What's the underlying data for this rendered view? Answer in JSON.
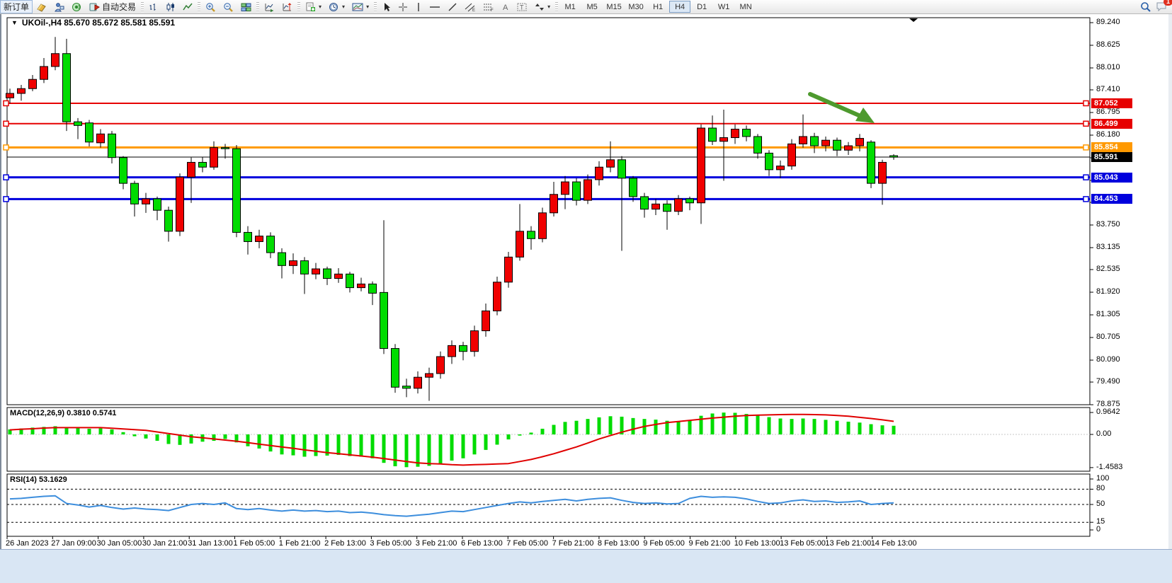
{
  "toolbar": {
    "new_order": "新订单",
    "autotrading": "自动交易",
    "badge_count": "1",
    "icons": [
      "metaeditor-icon",
      "accounts-icon",
      "signals-icon",
      "autotrading-icon",
      "bar-chart-icon",
      "candlestick-icon",
      "line-chart-icon",
      "zoom-in-icon",
      "zoom-out-icon",
      "tile-windows-icon",
      "auto-scroll-icon",
      "chart-shift-icon",
      "new-chart-icon",
      "period-clock-icon",
      "templates-icon",
      "cursor-icon",
      "crosshair-icon",
      "vertical-line-icon",
      "horizontal-line-icon",
      "trendline-icon",
      "channel-icon",
      "fibonacci-icon",
      "text-icon",
      "text-label-icon",
      "arrows-icon",
      "search-icon",
      "chat-icon"
    ],
    "timeframes": [
      {
        "label": "M1",
        "active": false
      },
      {
        "label": "M5",
        "active": false
      },
      {
        "label": "M15",
        "active": false
      },
      {
        "label": "M30",
        "active": false
      },
      {
        "label": "H1",
        "active": false
      },
      {
        "label": "H4",
        "active": true
      },
      {
        "label": "D1",
        "active": false
      },
      {
        "label": "W1",
        "active": false
      },
      {
        "label": "MN",
        "active": false
      }
    ]
  },
  "chart": {
    "dropdown_glyph": "▼",
    "title": "UKOil-,H4  85.670 85.672 85.581 85.591"
  },
  "chart_data": {
    "type": "candlestick",
    "symbol": "UKOil-",
    "timeframe": "H4",
    "ohlc_display": [
      "85.670",
      "85.672",
      "85.581",
      "85.591"
    ],
    "up_color": "#f00000",
    "down_color": "#00dc00",
    "price_axis_range": [
      78.875,
      89.24
    ],
    "price_axis_ticks": [
      "89.240",
      "88.625",
      "88.010",
      "87.410",
      "86.795",
      "86.180",
      "85.565",
      "84.965",
      "84.365",
      "83.750",
      "83.135",
      "82.535",
      "81.920",
      "81.305",
      "80.705",
      "80.090",
      "79.490",
      "78.875"
    ],
    "hlines": [
      {
        "label": "87.052",
        "value": 87.052,
        "color": "#e60000",
        "thickness": 2
      },
      {
        "label": "86.499",
        "value": 86.499,
        "color": "#e60000",
        "thickness": 2
      },
      {
        "label": "85.854",
        "value": 85.854,
        "color": "#ff9900",
        "thickness": 3
      },
      {
        "label": "85.043",
        "value": 85.043,
        "color": "#0000dd",
        "thickness": 3
      },
      {
        "label": "84.453",
        "value": 84.453,
        "color": "#0000dd",
        "thickness": 3
      }
    ],
    "current_price": {
      "label": "85.591",
      "value": 85.591,
      "color": "#000000"
    },
    "annotation_arrow_color": "#4e9a2e",
    "candles": [
      [
        87.2,
        87.45,
        87.05,
        87.32
      ],
      [
        87.32,
        87.55,
        87.12,
        87.45
      ],
      [
        87.45,
        87.82,
        87.38,
        87.7
      ],
      [
        87.7,
        88.28,
        87.6,
        88.05
      ],
      [
        88.05,
        88.85,
        87.95,
        88.4
      ],
      [
        88.4,
        88.8,
        86.3,
        86.55
      ],
      [
        86.55,
        86.65,
        86.08,
        86.45
      ],
      [
        86.52,
        86.6,
        85.88,
        86.0
      ],
      [
        85.98,
        86.35,
        85.85,
        86.22
      ],
      [
        86.22,
        86.3,
        85.42,
        85.58
      ],
      [
        85.58,
        85.62,
        84.72,
        84.88
      ],
      [
        84.88,
        84.95,
        83.98,
        84.32
      ],
      [
        84.32,
        84.62,
        84.08,
        84.46
      ],
      [
        84.46,
        84.52,
        83.88,
        84.15
      ],
      [
        84.15,
        84.25,
        83.3,
        83.58
      ],
      [
        83.58,
        85.15,
        83.45,
        85.05
      ],
      [
        85.05,
        85.58,
        84.35,
        85.45
      ],
      [
        85.45,
        85.6,
        85.18,
        85.32
      ],
      [
        85.32,
        86.02,
        85.25,
        85.85
      ],
      [
        85.85,
        85.95,
        85.55,
        85.82
      ],
      [
        85.82,
        85.92,
        83.42,
        83.55
      ],
      [
        83.55,
        83.72,
        82.95,
        83.3
      ],
      [
        83.3,
        83.62,
        83.12,
        83.45
      ],
      [
        83.45,
        83.55,
        82.85,
        83.0
      ],
      [
        83.0,
        83.12,
        82.3,
        82.65
      ],
      [
        82.65,
        82.98,
        82.42,
        82.78
      ],
      [
        82.78,
        82.88,
        81.88,
        82.42
      ],
      [
        82.42,
        82.72,
        82.28,
        82.56
      ],
      [
        82.56,
        82.62,
        82.12,
        82.3
      ],
      [
        82.3,
        82.58,
        82.18,
        82.42
      ],
      [
        82.42,
        82.48,
        81.92,
        82.05
      ],
      [
        82.05,
        82.32,
        81.95,
        82.15
      ],
      [
        82.15,
        82.22,
        81.58,
        81.9
      ],
      [
        81.92,
        83.88,
        80.25,
        80.4
      ],
      [
        80.4,
        80.52,
        79.2,
        79.35
      ],
      [
        79.38,
        79.58,
        79.08,
        79.32
      ],
      [
        79.32,
        79.78,
        79.18,
        79.62
      ],
      [
        79.62,
        79.88,
        78.98,
        79.72
      ],
      [
        79.72,
        80.32,
        79.58,
        80.18
      ],
      [
        80.18,
        80.62,
        79.98,
        80.48
      ],
      [
        80.48,
        80.58,
        80.08,
        80.32
      ],
      [
        80.32,
        81.02,
        80.18,
        80.88
      ],
      [
        80.88,
        81.62,
        80.72,
        81.42
      ],
      [
        81.42,
        82.35,
        81.3,
        82.2
      ],
      [
        82.2,
        83.02,
        82.05,
        82.88
      ],
      [
        82.88,
        84.32,
        82.78,
        83.58
      ],
      [
        83.58,
        83.72,
        83.08,
        83.38
      ],
      [
        83.38,
        84.22,
        83.28,
        84.08
      ],
      [
        84.08,
        84.92,
        83.98,
        84.58
      ],
      [
        84.58,
        85.08,
        84.18,
        84.92
      ],
      [
        84.92,
        85.02,
        84.28,
        84.42
      ],
      [
        84.42,
        85.12,
        84.32,
        84.98
      ],
      [
        84.98,
        85.48,
        84.82,
        85.32
      ],
      [
        85.32,
        86.02,
        85.18,
        85.52
      ],
      [
        85.52,
        85.62,
        83.05,
        85.02
      ],
      [
        85.02,
        85.08,
        84.38,
        84.52
      ],
      [
        84.52,
        84.62,
        83.95,
        84.18
      ],
      [
        84.18,
        84.46,
        84.02,
        84.32
      ],
      [
        84.32,
        84.42,
        83.62,
        84.12
      ],
      [
        84.12,
        84.56,
        84.02,
        84.46
      ],
      [
        84.46,
        84.52,
        84.15,
        84.35
      ],
      [
        84.35,
        86.48,
        83.78,
        86.38
      ],
      [
        86.38,
        86.72,
        85.92,
        86.02
      ],
      [
        86.02,
        86.88,
        84.95,
        86.12
      ],
      [
        86.12,
        86.48,
        85.95,
        86.35
      ],
      [
        86.35,
        86.45,
        86.02,
        86.15
      ],
      [
        86.15,
        86.22,
        85.55,
        85.7
      ],
      [
        85.7,
        85.78,
        85.08,
        85.25
      ],
      [
        85.25,
        85.5,
        85.02,
        85.35
      ],
      [
        85.35,
        86.08,
        85.25,
        85.95
      ],
      [
        85.95,
        86.75,
        85.85,
        86.15
      ],
      [
        86.15,
        86.25,
        85.7,
        85.9
      ],
      [
        85.9,
        86.15,
        85.75,
        86.05
      ],
      [
        86.05,
        86.12,
        85.62,
        85.78
      ],
      [
        85.78,
        86.0,
        85.65,
        85.9
      ],
      [
        85.9,
        86.22,
        85.75,
        86.1
      ],
      [
        86.0,
        86.05,
        84.75,
        84.88
      ],
      [
        84.88,
        85.52,
        84.3,
        85.45
      ],
      [
        85.63,
        85.67,
        85.52,
        85.59
      ]
    ],
    "time_labels": [
      "26 Jan 2023",
      "27 Jan 09:00",
      "30 Jan 05:00",
      "30 Jan 21:00",
      "31 Jan 13:00",
      "1 Feb 05:00",
      "1 Feb 21:00",
      "2 Feb 13:00",
      "3 Feb 05:00",
      "3 Feb 21:00",
      "6 Feb 13:00",
      "7 Feb 05:00",
      "7 Feb 21:00",
      "8 Feb 13:00",
      "9 Feb 05:00",
      "9 Feb 21:00",
      "10 Feb 13:00",
      "13 Feb 05:00",
      "13 Feb 21:00",
      "14 Feb 13:00"
    ],
    "macd": {
      "label": "MACD(12,26,9) 0.3810 0.5741",
      "bar_color": "#00dc00",
      "signal_color": "#e00000",
      "axis": [
        {
          "label": "0.9642",
          "value": 0.9642
        },
        {
          "label": "0.00",
          "value": 0
        },
        {
          "label": "-1.4583",
          "value": -1.4583
        }
      ],
      "histogram": [
        0.22,
        0.26,
        0.3,
        0.33,
        0.36,
        0.32,
        0.28,
        0.25,
        0.27,
        0.22,
        0.1,
        -0.08,
        -0.18,
        -0.28,
        -0.42,
        -0.46,
        -0.4,
        -0.32,
        -0.28,
        -0.2,
        -0.35,
        -0.52,
        -0.62,
        -0.75,
        -0.88,
        -0.92,
        -0.98,
        -0.95,
        -0.93,
        -0.9,
        -0.95,
        -0.98,
        -1.05,
        -1.25,
        -1.4,
        -1.44,
        -1.42,
        -1.38,
        -1.28,
        -1.15,
        -1.05,
        -0.88,
        -0.68,
        -0.45,
        -0.22,
        -0.05,
        0.08,
        0.25,
        0.42,
        0.55,
        0.6,
        0.68,
        0.75,
        0.8,
        0.78,
        0.72,
        0.68,
        0.65,
        0.6,
        0.58,
        0.62,
        0.82,
        0.92,
        0.96,
        0.95,
        0.9,
        0.84,
        0.76,
        0.7,
        0.68,
        0.7,
        0.68,
        0.64,
        0.6,
        0.56,
        0.52,
        0.45,
        0.4,
        0.381
      ],
      "signal": [
        0.2,
        0.23,
        0.25,
        0.28,
        0.3,
        0.3,
        0.3,
        0.3,
        0.3,
        0.27,
        0.24,
        0.21,
        0.18,
        0.11,
        0.04,
        -0.03,
        -0.1,
        -0.15,
        -0.2,
        -0.25,
        -0.3,
        -0.36,
        -0.43,
        -0.49,
        -0.55,
        -0.61,
        -0.68,
        -0.74,
        -0.8,
        -0.85,
        -0.9,
        -0.95,
        -1.0,
        -1.06,
        -1.13,
        -1.19,
        -1.25,
        -1.28,
        -1.3,
        -1.33,
        -1.35,
        -1.33,
        -1.32,
        -1.3,
        -1.28,
        -1.19,
        -1.1,
        -0.98,
        -0.85,
        -0.7,
        -0.55,
        -0.38,
        -0.2,
        -0.05,
        0.1,
        0.23,
        0.35,
        0.44,
        0.52,
        0.57,
        0.62,
        0.67,
        0.72,
        0.76,
        0.8,
        0.83,
        0.85,
        0.86,
        0.87,
        0.88,
        0.88,
        0.87,
        0.86,
        0.83,
        0.8,
        0.75,
        0.7,
        0.64,
        0.574
      ]
    },
    "rsi": {
      "label": "RSI(14) 53.1629",
      "line_color": "#3d8edd",
      "levels": [
        80,
        50,
        15
      ],
      "axis": [
        {
          "label": "100",
          "value": 100
        },
        {
          "label": "80",
          "value": 80
        },
        {
          "label": "50",
          "value": 50
        },
        {
          "label": "15",
          "value": 15
        },
        {
          "label": "0",
          "value": 0
        }
      ],
      "values": [
        61,
        62,
        64,
        66,
        67,
        52,
        49,
        45,
        48,
        44,
        41,
        43,
        41,
        40,
        38,
        44,
        50,
        52,
        50,
        53,
        42,
        40,
        42,
        39,
        37,
        39,
        37,
        38,
        36,
        37,
        34,
        35,
        33,
        30,
        28,
        27,
        29,
        31,
        34,
        37,
        36,
        40,
        44,
        48,
        52,
        55,
        53,
        56,
        58,
        60,
        57,
        60,
        62,
        63,
        58,
        54,
        52,
        53,
        51,
        52,
        62,
        66,
        64,
        65,
        64,
        61,
        56,
        52,
        53,
        57,
        59,
        56,
        57,
        54,
        55,
        57,
        50,
        52,
        53.16
      ]
    }
  }
}
